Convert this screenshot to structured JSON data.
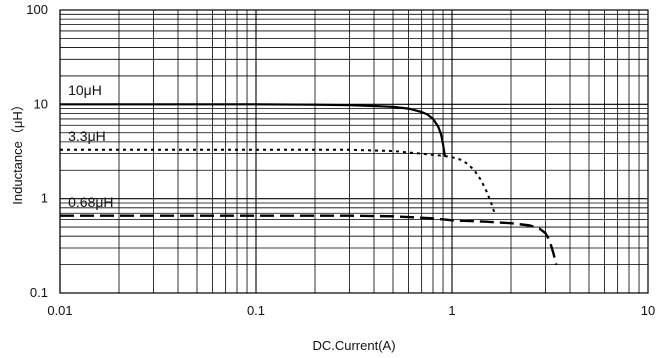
{
  "chart_data": {
    "type": "line",
    "xscale": "log",
    "yscale": "log",
    "xlim": [
      0.01,
      10
    ],
    "ylim": [
      0.1,
      100
    ],
    "xlabel": "DC.Current(A)",
    "ylabel": "Inductance（μH）",
    "x_ticks": [
      {
        "value": 0.01,
        "label": "0.01"
      },
      {
        "value": 0.1,
        "label": "0.1"
      },
      {
        "value": 1,
        "label": "1"
      },
      {
        "value": 10,
        "label": "10"
      }
    ],
    "y_ticks": [
      {
        "value": 0.1,
        "label": "0.1"
      },
      {
        "value": 1,
        "label": "1"
      },
      {
        "value": 10,
        "label": "10"
      },
      {
        "value": 100,
        "label": "100"
      }
    ],
    "grid": true,
    "series": [
      {
        "name": "10μH",
        "line_style": "solid",
        "color": "#000000",
        "label_at": [
          0.011,
          12.5
        ],
        "x": [
          0.01,
          0.05,
          0.1,
          0.2,
          0.3,
          0.4,
          0.5,
          0.6,
          0.7,
          0.75,
          0.8,
          0.85,
          0.88,
          0.9,
          0.92
        ],
        "y": [
          10,
          10,
          10,
          9.9,
          9.8,
          9.6,
          9.4,
          9.0,
          8.3,
          7.8,
          7.0,
          5.8,
          4.8,
          3.8,
          2.8
        ]
      },
      {
        "name": "3.3μH",
        "line_style": "dotted",
        "color": "#000000",
        "label_at": [
          0.011,
          4.1
        ],
        "x": [
          0.01,
          0.05,
          0.1,
          0.2,
          0.3,
          0.5,
          0.7,
          0.9,
          1.0,
          1.1,
          1.2,
          1.3,
          1.4,
          1.5,
          1.6,
          1.65
        ],
        "y": [
          3.3,
          3.3,
          3.3,
          3.3,
          3.3,
          3.2,
          3.0,
          2.85,
          2.75,
          2.6,
          2.35,
          2.0,
          1.6,
          1.2,
          0.85,
          0.7
        ]
      },
      {
        "name": "0.68μH",
        "line_style": "dashed",
        "color": "#000000",
        "label_at": [
          0.011,
          0.82
        ],
        "x": [
          0.01,
          0.05,
          0.1,
          0.3,
          0.5,
          0.8,
          1.0,
          1.5,
          2.0,
          2.5,
          2.8,
          3.0,
          3.1,
          3.2,
          3.3,
          3.4
        ],
        "y": [
          0.66,
          0.66,
          0.66,
          0.66,
          0.65,
          0.62,
          0.59,
          0.57,
          0.55,
          0.52,
          0.48,
          0.43,
          0.38,
          0.32,
          0.26,
          0.2
        ]
      }
    ]
  }
}
